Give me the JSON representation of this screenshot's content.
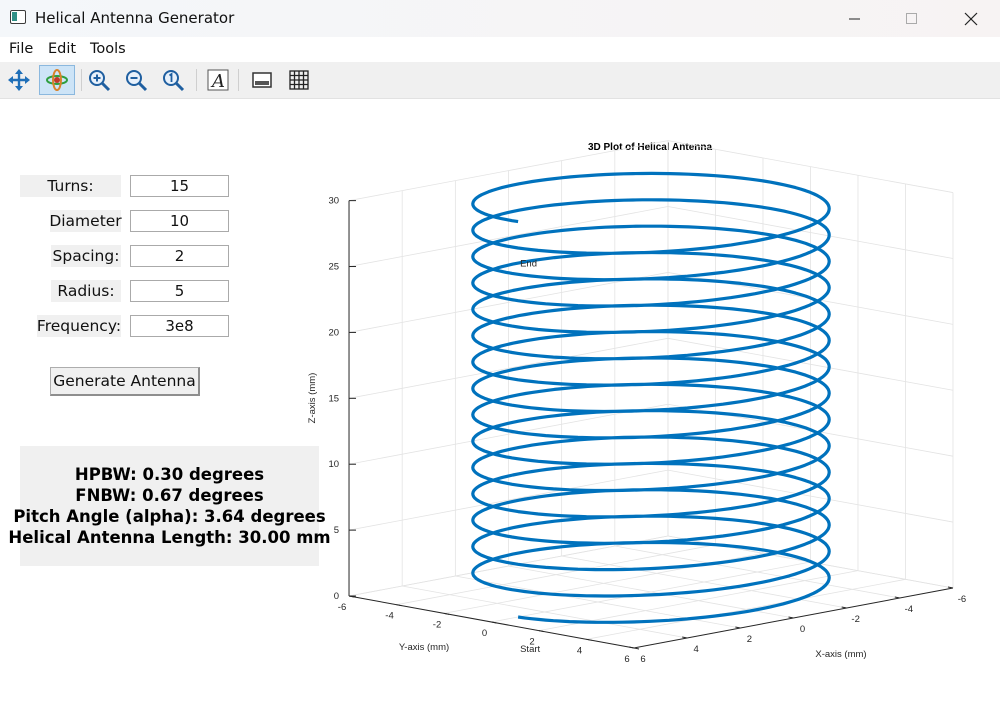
{
  "window": {
    "title": "Helical Antenna Generator"
  },
  "menu": [
    "File",
    "Edit",
    "Tools"
  ],
  "toolbar": {
    "tools": [
      "pan-icon",
      "rotate-3d-icon",
      "zoom-in-icon",
      "zoom-out-icon",
      "reset-zoom-icon",
      "text-icon",
      "legend-icon",
      "grid-icon"
    ],
    "active": "rotate-3d-icon"
  },
  "form": {
    "turns_label": "Turns:",
    "turns_value": "15",
    "diameter_label": "Diameter",
    "diameter_value": "10",
    "spacing_label": "Spacing:",
    "spacing_value": "2",
    "radius_label": "Radius:",
    "radius_value": "5",
    "frequency_label": "Frequency:",
    "frequency_value": "3e8",
    "generate_label": "Generate Antenna"
  },
  "results": {
    "hpbw": "HPBW: 0.30 degrees",
    "fnbw": "FNBW: 0.67 degrees",
    "pitch": "Pitch Angle (alpha): 3.64 degrees",
    "length": "Helical Antenna Length: 30.00 mm"
  },
  "chart_data": {
    "type": "line3d",
    "title": "3D Plot of Helical Antenna",
    "xlabel": "X-axis (mm)",
    "ylabel": "Y-axis (mm)",
    "zlabel": "Z-axis (mm)",
    "xlim": [
      -6,
      6
    ],
    "ylim": [
      -6,
      6
    ],
    "zlim": [
      0,
      30
    ],
    "x_ticks": [
      "6",
      "4",
      "2",
      "0",
      "-2",
      "-4",
      "-6"
    ],
    "y_ticks": [
      "-6",
      "-4",
      "-2",
      "0",
      "2",
      "4",
      "6"
    ],
    "z_ticks": [
      "0",
      "5",
      "10",
      "15",
      "20",
      "25",
      "30"
    ],
    "series": [
      {
        "turns": 15,
        "radius": 5,
        "pitch": 2,
        "z_start": 0,
        "z_end": 30,
        "color": "#0072bd"
      }
    ],
    "annotations": [
      "Start",
      "End"
    ],
    "grid": true
  }
}
